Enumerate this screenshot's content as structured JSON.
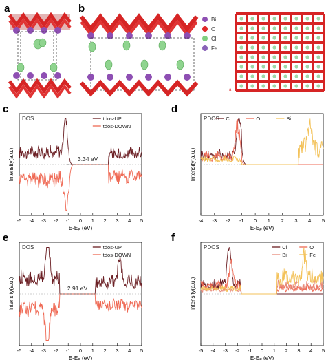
{
  "panel_letters": {
    "a": "a",
    "b": "b",
    "c": "c",
    "d": "d",
    "e": "e",
    "f": "f"
  },
  "structure_legend": {
    "items": [
      {
        "label": "Bi",
        "color": "#8e4fb3"
      },
      {
        "label": "O",
        "color": "#e0282a"
      },
      {
        "label": "Cl",
        "color": "#7fcf7f"
      },
      {
        "label": "Fe",
        "color": "#8a63b8"
      }
    ]
  },
  "axis_symbol": "a",
  "chart_data": [
    {
      "panel": "c",
      "type": "line",
      "corner_label": "DOS",
      "xlabel": "E-E_F (eV)",
      "xlabel_main": "E-E",
      "xlabel_sub": "F",
      "xlabel_tail": " (eV)",
      "ylabel": "Intensity(a.u.)",
      "xlim": [
        -5,
        5
      ],
      "xticks": [
        "-5",
        "-4",
        "-3",
        "-2",
        "-1",
        "0",
        "1",
        "2",
        "3",
        "4",
        "5"
      ],
      "gap_label": "3.34 eV",
      "gap": [
        -1.1,
        2.3
      ],
      "legend": [
        {
          "name": "tdos-UP",
          "color": "#6b1f24"
        },
        {
          "name": "tdos-DOWN",
          "color": "#ef6a55"
        }
      ],
      "series": [
        {
          "name": "tdos-UP",
          "color": "#6b1f24",
          "sign": 1,
          "bands": [
            [
              -5,
              -1.1,
              0.45
            ],
            [
              2.3,
              5,
              0.4
            ]
          ],
          "peaks": [
            [
              -1.2,
              1.0
            ]
          ]
        },
        {
          "name": "tdos-DOWN",
          "color": "#ef6a55",
          "sign": -1,
          "bands": [
            [
              -5,
              -1.1,
              0.55
            ],
            [
              2.3,
              5,
              0.45
            ]
          ],
          "peaks": [
            [
              -1.1,
              0.95
            ]
          ]
        }
      ]
    },
    {
      "panel": "d",
      "type": "line",
      "corner_label": "PDOS",
      "xlabel": "E-E_F (eV)",
      "xlabel_main": "E-E",
      "xlabel_sub": "F",
      "xlabel_tail": " (eV)",
      "ylabel": "Intensity(a.u.)",
      "xlim": [
        -4,
        5
      ],
      "xticks": [
        "-4",
        "-3",
        "-2",
        "-1",
        "0",
        "1",
        "2",
        "3",
        "4",
        "5"
      ],
      "legend": [
        {
          "name": "Cl",
          "color": "#6b1f24"
        },
        {
          "name": "O",
          "color": "#ef6a55"
        },
        {
          "name": "Bi",
          "color": "#f3c25a"
        }
      ],
      "series": [
        {
          "name": "Cl",
          "color": "#6b1f24",
          "sign": 1,
          "bands": [
            [
              -4,
              -1.0,
              0.35
            ]
          ],
          "peaks": [
            [
              -1.2,
              1.0
            ]
          ]
        },
        {
          "name": "O",
          "color": "#ef6a55",
          "sign": 1,
          "bands": [
            [
              -4,
              -1.0,
              0.3
            ]
          ],
          "peaks": [
            [
              -1.3,
              0.8
            ]
          ]
        },
        {
          "name": "Bi",
          "color": "#f3c25a",
          "sign": 1,
          "bands": [
            [
              -4,
              -1.0,
              0.2
            ],
            [
              3.2,
              5,
              0.6
            ]
          ],
          "peaks": [
            [
              4.0,
              0.7
            ]
          ]
        }
      ]
    },
    {
      "panel": "e",
      "type": "line",
      "corner_label": "DOS",
      "xlabel": "E-E_F (eV)",
      "xlabel_main": "E-E",
      "xlabel_sub": "F",
      "xlabel_tail": " (eV)",
      "ylabel": "Intensity(a.u.)",
      "xlim": [
        -5,
        5
      ],
      "xticks": [
        "-5",
        "-4",
        "-3",
        "-2",
        "-1",
        "0",
        "1",
        "2",
        "3",
        "4",
        "5"
      ],
      "gap_label": "2.91 eV",
      "gap": [
        -1.7,
        1.2
      ],
      "legend": [
        {
          "name": "tdos-UP",
          "color": "#6b1f24"
        },
        {
          "name": "tdos-DOWN",
          "color": "#ef6a55"
        }
      ],
      "series": [
        {
          "name": "tdos-UP",
          "color": "#6b1f24",
          "sign": 1,
          "bands": [
            [
              -5,
              -1.7,
              0.55
            ],
            [
              1.2,
              5,
              0.45
            ]
          ],
          "peaks": [
            [
              -2.7,
              1.0
            ],
            [
              3.2,
              0.55
            ]
          ]
        },
        {
          "name": "tdos-DOWN",
          "color": "#ef6a55",
          "sign": -1,
          "bands": [
            [
              -5,
              -1.7,
              0.5
            ],
            [
              1.2,
              5,
              0.4
            ]
          ],
          "peaks": [
            [
              -2.7,
              1.0
            ]
          ]
        }
      ]
    },
    {
      "panel": "f",
      "type": "line",
      "corner_label": "PDOS",
      "xlabel": "E-E_F (eV)",
      "xlabel_main": "E-E",
      "xlabel_sub": "F",
      "xlabel_tail": " (eV)",
      "ylabel": "Intensity(a.u.)",
      "xlim": [
        -5,
        5
      ],
      "xticks": [
        "-5",
        "-4",
        "-3",
        "-2",
        "-1",
        "0",
        "1",
        "2",
        "3",
        "4",
        "5"
      ],
      "legend": [
        {
          "name": "Cl",
          "color": "#6b1f24"
        },
        {
          "name": "O",
          "color": "#ef6a55"
        },
        {
          "name": "Bi",
          "color": "#e88a7a"
        },
        {
          "name": "Fe",
          "color": "#f3c25a"
        }
      ],
      "series": [
        {
          "name": "Cl",
          "color": "#6b1f24",
          "sign": 1,
          "bands": [
            [
              -5,
              -1.7,
              0.35
            ]
          ],
          "peaks": [
            [
              -2.7,
              1.0
            ]
          ]
        },
        {
          "name": "O",
          "color": "#ef6a55",
          "sign": 1,
          "bands": [
            [
              -5,
              -1.7,
              0.3
            ],
            [
              1.2,
              5,
              0.2
            ]
          ],
          "peaks": [
            [
              -2.5,
              0.6
            ]
          ]
        },
        {
          "name": "Bi",
          "color": "#e88a7a",
          "sign": 1,
          "bands": [
            [
              -5,
              -1.7,
              0.15
            ],
            [
              1.2,
              5,
              0.3
            ]
          ],
          "peaks": []
        },
        {
          "name": "Fe",
          "color": "#f3c25a",
          "sign": 1,
          "bands": [
            [
              -5,
              -1.7,
              0.2
            ],
            [
              1.2,
              5,
              0.55
            ]
          ],
          "peaks": [
            [
              3.5,
              0.6
            ]
          ]
        }
      ]
    }
  ]
}
